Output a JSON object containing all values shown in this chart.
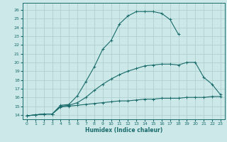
{
  "xlabel": "Humidex (Indice chaleur)",
  "bg_color": "#cce8e8",
  "grid_color": "#b0d0d0",
  "line_color": "#1a6b6b",
  "xlim": [
    -0.5,
    23.5
  ],
  "ylim": [
    13.5,
    26.8
  ],
  "xticks": [
    0,
    1,
    2,
    3,
    4,
    5,
    6,
    7,
    8,
    9,
    10,
    11,
    12,
    13,
    14,
    15,
    16,
    17,
    18,
    19,
    20,
    21,
    22,
    23
  ],
  "yticks": [
    14,
    15,
    16,
    17,
    18,
    19,
    20,
    21,
    22,
    23,
    24,
    25,
    26
  ],
  "line1_x": [
    0,
    1,
    2,
    3,
    4,
    5,
    6,
    7,
    8,
    9,
    10,
    11,
    12,
    13,
    14,
    15,
    16,
    17,
    18
  ],
  "line1_y": [
    13.9,
    14.0,
    14.1,
    14.1,
    15.1,
    15.2,
    16.2,
    17.8,
    19.5,
    21.5,
    22.5,
    24.4,
    25.3,
    25.8,
    25.8,
    25.8,
    25.6,
    24.9,
    23.2
  ],
  "line2_x": [
    0,
    1,
    2,
    3,
    4,
    5,
    6,
    7,
    8,
    9,
    10,
    11,
    12,
    13,
    14,
    15,
    16,
    17,
    18,
    19,
    20,
    21,
    22,
    23
  ],
  "line2_y": [
    13.9,
    14.0,
    14.1,
    14.1,
    15.0,
    15.1,
    15.4,
    16.0,
    16.8,
    17.5,
    18.1,
    18.6,
    19.0,
    19.3,
    19.6,
    19.7,
    19.8,
    19.8,
    19.7,
    20.0,
    20.0,
    18.3,
    17.5,
    16.3
  ],
  "line3_x": [
    0,
    1,
    2,
    3,
    4,
    5,
    6,
    7,
    8,
    9,
    10,
    11,
    12,
    13,
    14,
    15,
    16,
    17,
    18,
    19,
    20,
    21,
    22,
    23
  ],
  "line3_y": [
    13.9,
    14.0,
    14.1,
    14.1,
    14.9,
    15.0,
    15.1,
    15.2,
    15.3,
    15.4,
    15.5,
    15.6,
    15.6,
    15.7,
    15.8,
    15.8,
    15.9,
    15.9,
    15.9,
    16.0,
    16.0,
    16.0,
    16.1,
    16.1
  ]
}
